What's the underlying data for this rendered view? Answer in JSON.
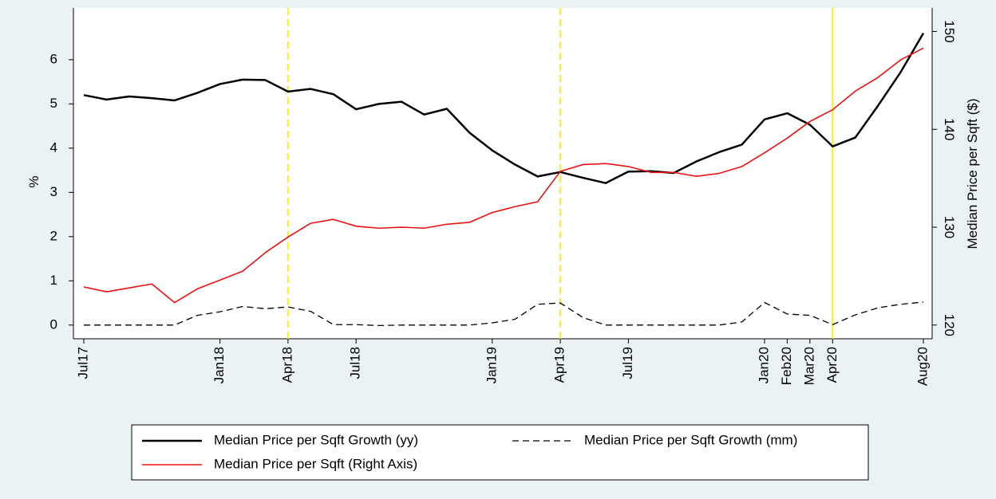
{
  "chart_data": {
    "type": "line",
    "categories": [
      "Jul17",
      null,
      null,
      null,
      null,
      null,
      "Jan18",
      null,
      null,
      "Apr18",
      null,
      null,
      "Jul18",
      null,
      null,
      null,
      null,
      null,
      "Jan19",
      null,
      null,
      "Apr19",
      null,
      null,
      "Jul19",
      null,
      null,
      null,
      null,
      null,
      "Jan20",
      "Feb20",
      "Mar20",
      "Apr20",
      null,
      null,
      null,
      "Aug20"
    ],
    "y_label": "%",
    "y2_label": "Median Price per Sqft ($)",
    "ylim": [
      -0.31,
      7.17
    ],
    "yticks": [
      0,
      1,
      2,
      3,
      4,
      5,
      6
    ],
    "y2lim": [
      118.6,
      152.4
    ],
    "y2ticks": [
      120,
      130,
      140,
      150
    ],
    "reference_lines": [
      {
        "at": "Apr18",
        "color": "#ffee22",
        "dash": true
      },
      {
        "at": "Apr19",
        "color": "#ffee22",
        "dash": true
      },
      {
        "at": "Apr20",
        "color": "#ffee22",
        "dash": false
      }
    ],
    "series": [
      {
        "name": "Median Price per Sqft Growth (yy)",
        "color": "#000000",
        "dash": false,
        "width": 2.5,
        "axis": "y",
        "values": [
          5.2,
          5.1,
          5.17,
          5.13,
          5.08,
          5.25,
          5.45,
          5.55,
          5.54,
          5.28,
          5.34,
          5.22,
          4.88,
          5.0,
          5.05,
          4.76,
          4.89,
          4.35,
          3.95,
          3.63,
          3.36,
          3.46,
          3.33,
          3.21,
          3.47,
          3.48,
          3.44,
          3.7,
          3.91,
          4.08,
          4.65,
          4.79,
          4.53,
          4.04,
          4.24,
          4.96,
          5.72,
          6.6
        ]
      },
      {
        "name": "Median Price per Sqft Growth (mm)",
        "color": "#000000",
        "dash": true,
        "width": 1.3,
        "axis": "y",
        "values": [
          0,
          0,
          0,
          0,
          0,
          0.22,
          0.3,
          0.42,
          0.37,
          0.41,
          0.31,
          0.01,
          0.01,
          -0.01,
          0,
          0,
          0,
          0,
          0.05,
          0.13,
          0.47,
          0.5,
          0.17,
          0,
          0,
          0,
          0,
          0,
          0,
          0.07,
          0.51,
          0.25,
          0.22,
          0.01,
          0.23,
          0.39,
          0.47,
          0.52
        ]
      },
      {
        "name": "Median Price per Sqft (Right Axis)",
        "color": "#ee1111",
        "dash": false,
        "width": 1.6,
        "axis": "y2",
        "values": [
          123.9,
          123.4,
          123.8,
          124.2,
          122.3,
          123.7,
          124.6,
          125.5,
          127.4,
          129.0,
          130.4,
          130.8,
          130.1,
          129.9,
          130.0,
          129.9,
          130.3,
          130.5,
          131.5,
          132.1,
          132.6,
          135.7,
          136.4,
          136.5,
          136.2,
          135.6,
          135.6,
          135.2,
          135.5,
          136.2,
          137.6,
          139.1,
          140.8,
          142.0,
          143.9,
          145.3,
          147.1,
          148.3
        ]
      }
    ]
  }
}
